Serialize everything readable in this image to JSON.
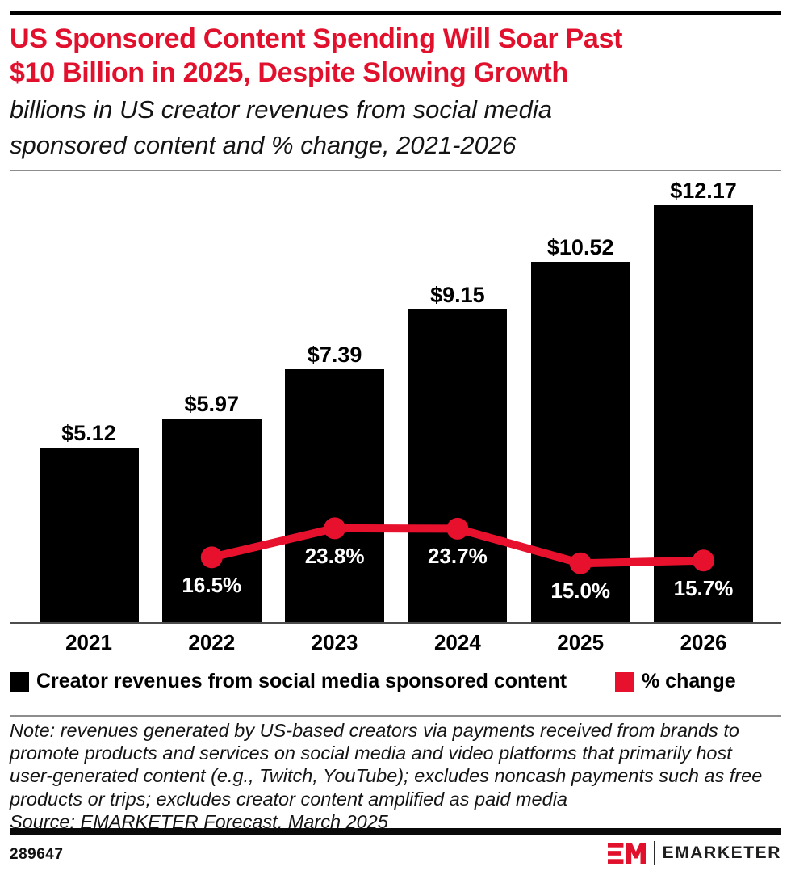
{
  "header": {
    "title_line1": "US Sponsored Content Spending Will Soar Past",
    "title_line2": "$10 Billion in 2025, Despite Slowing Growth",
    "title_color": "#e1112d",
    "subtitle_line1": "billions in US creator revenues from social media",
    "subtitle_line2": "sponsored content and % change, 2021-2026"
  },
  "chart_data": {
    "type": "bar",
    "title": "US Sponsored Content Spending Will Soar Past $10 Billion in 2025, Despite Slowing Growth",
    "subtitle": "billions in US creator revenues from social media sponsored content and % change, 2021-2026",
    "categories": [
      "2021",
      "2022",
      "2023",
      "2024",
      "2025",
      "2026"
    ],
    "series": [
      {
        "name": "Creator revenues from social media sponsored content",
        "type": "bar",
        "unit": "billions USD",
        "color": "#000000",
        "values": [
          5.12,
          5.97,
          7.39,
          9.15,
          10.52,
          12.17
        ],
        "labels": [
          "$5.12",
          "$5.97",
          "$7.39",
          "$9.15",
          "$10.52",
          "$12.17"
        ]
      },
      {
        "name": "% change",
        "type": "line",
        "unit": "percent",
        "color": "#e8112d",
        "values": [
          null,
          16.5,
          23.8,
          23.7,
          15.0,
          15.7
        ],
        "labels": [
          null,
          "16.5%",
          "23.8%",
          "23.7%",
          "15.0%",
          "15.7%"
        ]
      }
    ],
    "xlabel": "",
    "ylabel": "",
    "ylim_bars": [
      0,
      13
    ],
    "ylim_pct": [
      0,
      110
    ],
    "grid": false,
    "axes_hidden": true,
    "legend_position": "bottom"
  },
  "legend": {
    "bar_label": "Creator revenues from social media sponsored content",
    "bar_color": "#000000",
    "line_label": "% change",
    "line_color": "#e8112d"
  },
  "note": {
    "lines": [
      "Note: revenues generated by US-based creators via payments received from brands to",
      "promote products and services on social media and video platforms that primarily host",
      "user-generated content (e.g., Twitch, YouTube); excludes noncash payments such as free",
      "products or trips; excludes creator content amplified as paid media"
    ],
    "source": "Source: EMARKETER Forecast, March 2025"
  },
  "footer": {
    "chart_id": "289647",
    "brand": "EMARKETER"
  }
}
